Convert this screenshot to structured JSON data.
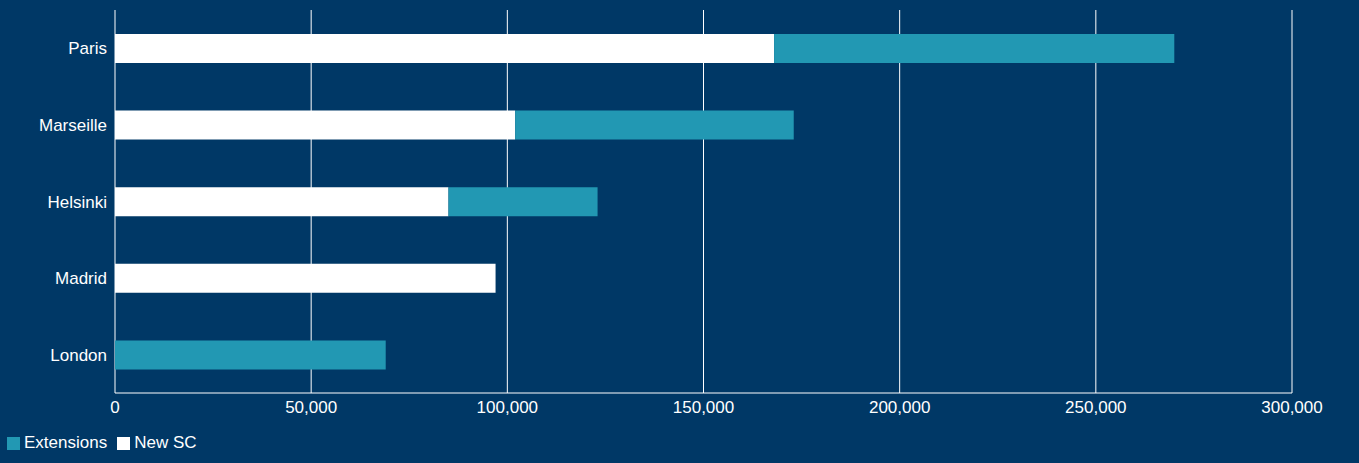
{
  "chart_data": {
    "type": "bar",
    "orientation": "horizontal",
    "stacked": true,
    "grid": true,
    "legend": "lower left",
    "categories": [
      "Paris",
      "Marseille",
      "Helsinki",
      "Madrid",
      "London"
    ],
    "series": [
      {
        "name": "New SC",
        "color": "#ffffff",
        "values": [
          168000,
          102000,
          85000,
          97000,
          0
        ]
      },
      {
        "name": "Extensions",
        "color": "#2298b3",
        "values": [
          102000,
          71000,
          38000,
          0,
          69000
        ]
      }
    ],
    "xlim": [
      0,
      300000
    ],
    "xticks": [
      0,
      {
        "value": 50000,
        "label": "50,000"
      },
      {
        "value": 100000,
        "label": "100,000"
      },
      {
        "value": 150000,
        "label": "150,000"
      },
      {
        "value": 200000,
        "label": "200,000"
      },
      {
        "value": 250000,
        "label": "250,000"
      },
      {
        "value": 300000,
        "label": "300,000"
      }
    ]
  }
}
